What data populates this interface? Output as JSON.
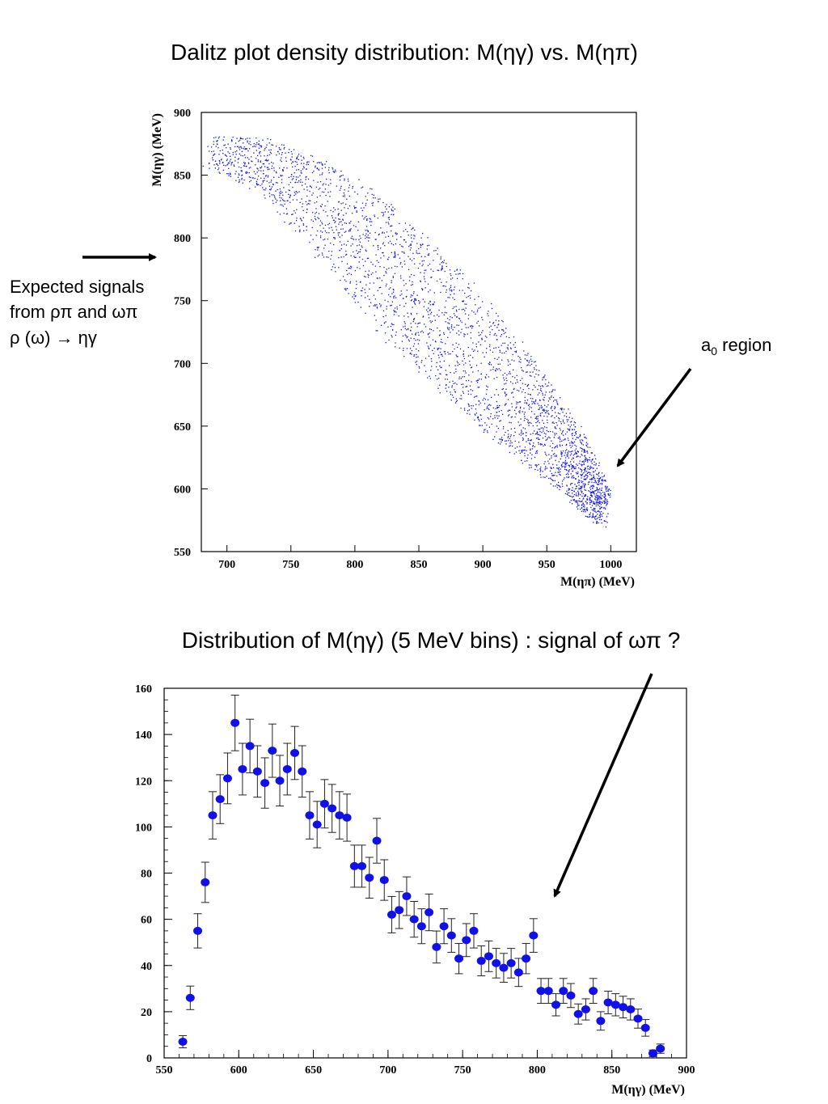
{
  "page": {
    "title_top": "Dalitz plot density distribution: M(ηγ) vs. M(ηπ)",
    "title_bottom": "Distribution of M(ηγ) (5 MeV bins) : signal of ωπ ?",
    "annotation_left": [
      "Expected signals",
      "from ρπ and ωπ",
      "ρ (ω) → ηγ"
    ],
    "annotation_right_main": "a",
    "annotation_right_sub": "0",
    "annotation_right_rest": " region"
  },
  "colors": {
    "points": "#1010e8",
    "axes": "#000000"
  },
  "chart_data": [
    {
      "type": "scatter",
      "title": "",
      "xlabel": "M(ηπ) (MeV)",
      "ylabel": "M(ηγ) (MeV)",
      "xlim": [
        680,
        1020
      ],
      "ylim": [
        550,
        900
      ],
      "xticks": [
        700,
        750,
        800,
        850,
        900,
        950,
        1000
      ],
      "yticks": [
        550,
        600,
        650,
        700,
        750,
        800,
        850,
        900
      ],
      "density_band": {
        "description_points": "dense diagonal band",
        "center": [
          [
            685,
            870
          ],
          [
            730,
            858
          ],
          [
            780,
            820
          ],
          [
            830,
            770
          ],
          [
            880,
            720
          ],
          [
            930,
            668
          ],
          [
            970,
            622
          ],
          [
            995,
            585
          ]
        ],
        "half_width_y": [
          12,
          22,
          38,
          50,
          48,
          40,
          28,
          16
        ]
      }
    },
    {
      "type": "scatter",
      "title": "",
      "xlabel": "M(ηγ) (MeV)",
      "ylabel": "",
      "xlim": [
        550,
        900
      ],
      "ylim": [
        0,
        160
      ],
      "xticks": [
        550,
        600,
        650,
        700,
        750,
        800,
        850,
        900
      ],
      "yticks": [
        0,
        20,
        40,
        60,
        80,
        100,
        120,
        140,
        160
      ],
      "x": [
        562.5,
        567.5,
        572.5,
        577.5,
        582.5,
        587.5,
        592.5,
        597.5,
        602.5,
        607.5,
        612.5,
        617.5,
        622.5,
        627.5,
        632.5,
        637.5,
        642.5,
        647.5,
        652.5,
        657.5,
        662.5,
        667.5,
        672.5,
        677.5,
        682.5,
        687.5,
        692.5,
        697.5,
        702.5,
        707.5,
        712.5,
        717.5,
        722.5,
        727.5,
        732.5,
        737.5,
        742.5,
        747.5,
        752.5,
        757.5,
        762.5,
        767.5,
        772.5,
        777.5,
        782.5,
        787.5,
        792.5,
        797.5,
        802.5,
        807.5,
        812.5,
        817.5,
        822.5,
        827.5,
        832.5,
        837.5,
        842.5,
        847.5,
        852.5,
        857.5,
        862.5,
        867.5,
        872.5,
        877.5,
        882.5
      ],
      "y": [
        7,
        26,
        55,
        76,
        105,
        112,
        121,
        145,
        125,
        135,
        124,
        119,
        133,
        120,
        125,
        132,
        124,
        105,
        101,
        110,
        108,
        105,
        104,
        83,
        83,
        78,
        94,
        77,
        62,
        64,
        70,
        60,
        57,
        63,
        48,
        57,
        53,
        43,
        51,
        55,
        42,
        44,
        41,
        39,
        41,
        37,
        43,
        53,
        29,
        29,
        23,
        29,
        27,
        19,
        21,
        29,
        16,
        24,
        23,
        22,
        21,
        17,
        13,
        2,
        4
      ]
    }
  ]
}
